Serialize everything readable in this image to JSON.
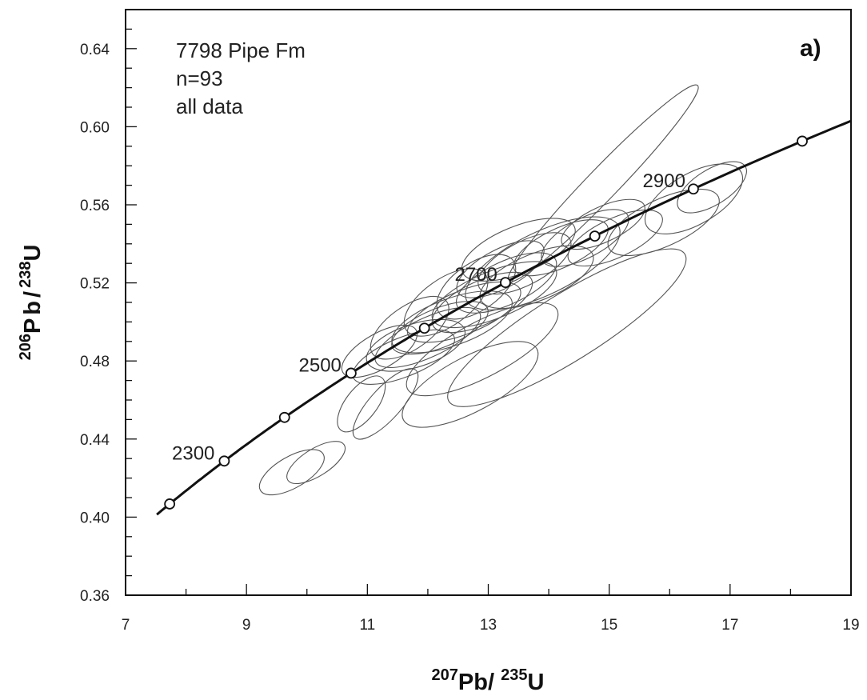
{
  "chart_data": {
    "type": "scatter",
    "title": "",
    "sample": [
      "7798 Pipe Fm",
      "n=93",
      "all data"
    ],
    "panel_label": "a)",
    "xlabel": {
      "mass_a": "207",
      "elem_a": "Pb/",
      "mass_b": "235",
      "elem_b": "U"
    },
    "ylabel": {
      "mass_a": "206",
      "elem_a": "Pb/",
      "mass_b": "238",
      "elem_b": "U"
    },
    "xlim": [
      7,
      19
    ],
    "ylim": [
      0.36,
      0.66
    ],
    "xticks": [
      {
        "value": 7,
        "label": "7"
      },
      {
        "value": 9,
        "label": "9"
      },
      {
        "value": 11,
        "label": "11"
      },
      {
        "value": 13,
        "label": "13"
      },
      {
        "value": 15,
        "label": "15"
      },
      {
        "value": 17,
        "label": "17"
      },
      {
        "value": 19,
        "label": "19"
      }
    ],
    "yticks": [
      {
        "value": 0.36,
        "label": "0.36"
      },
      {
        "value": 0.4,
        "label": "0.40"
      },
      {
        "value": 0.44,
        "label": "0.44"
      },
      {
        "value": 0.48,
        "label": "0.48"
      },
      {
        "value": 0.52,
        "label": "0.52"
      },
      {
        "value": 0.56,
        "label": "0.56"
      },
      {
        "value": 0.6,
        "label": "0.60"
      },
      {
        "value": 0.64,
        "label": "0.64"
      }
    ],
    "concordia": {
      "age_range_ma": [
        2175,
        3080
      ],
      "markers": [
        {
          "age": 2200,
          "label": ""
        },
        {
          "age": 2300,
          "label": "2300"
        },
        {
          "age": 2400,
          "label": ""
        },
        {
          "age": 2500,
          "label": "2500"
        },
        {
          "age": 2600,
          "label": ""
        },
        {
          "age": 2700,
          "label": "2700"
        },
        {
          "age": 2800,
          "label": ""
        },
        {
          "age": 2900,
          "label": "2900"
        },
        {
          "age": 3000,
          "label": ""
        }
      ]
    },
    "ellipses": [
      {
        "x": 9.75,
        "y": 0.423,
        "rx": 0.6,
        "ry": 0.008,
        "angle": 30
      },
      {
        "x": 10.15,
        "y": 0.428,
        "rx": 0.55,
        "ry": 0.007,
        "angle": 32
      },
      {
        "x": 10.9,
        "y": 0.458,
        "rx": 0.55,
        "ry": 0.008,
        "angle": 52
      },
      {
        "x": 11.3,
        "y": 0.458,
        "rx": 0.75,
        "ry": 0.008,
        "angle": 48
      },
      {
        "x": 12.7,
        "y": 0.468,
        "rx": 1.25,
        "ry": 0.014,
        "angle": 28
      },
      {
        "x": 11.6,
        "y": 0.482,
        "rx": 0.9,
        "ry": 0.01,
        "angle": 22
      },
      {
        "x": 11.2,
        "y": 0.485,
        "rx": 0.7,
        "ry": 0.009,
        "angle": 30
      },
      {
        "x": 11.8,
        "y": 0.488,
        "rx": 0.85,
        "ry": 0.011,
        "angle": 18
      },
      {
        "x": 12.0,
        "y": 0.492,
        "rx": 0.95,
        "ry": 0.01,
        "angle": 25
      },
      {
        "x": 11.7,
        "y": 0.497,
        "rx": 0.75,
        "ry": 0.011,
        "angle": 35
      },
      {
        "x": 12.2,
        "y": 0.497,
        "rx": 0.85,
        "ry": 0.01,
        "angle": 22
      },
      {
        "x": 12.4,
        "y": 0.5,
        "rx": 1.05,
        "ry": 0.012,
        "angle": 20
      },
      {
        "x": 12.9,
        "y": 0.486,
        "rx": 1.4,
        "ry": 0.014,
        "angle": 28
      },
      {
        "x": 12.6,
        "y": 0.505,
        "rx": 1.0,
        "ry": 0.011,
        "angle": 22
      },
      {
        "x": 12.3,
        "y": 0.51,
        "rx": 0.8,
        "ry": 0.012,
        "angle": 35
      },
      {
        "x": 12.9,
        "y": 0.51,
        "rx": 0.9,
        "ry": 0.011,
        "angle": 25
      },
      {
        "x": 13.1,
        "y": 0.514,
        "rx": 1.1,
        "ry": 0.012,
        "angle": 22
      },
      {
        "x": 12.8,
        "y": 0.518,
        "rx": 0.75,
        "ry": 0.012,
        "angle": 35
      },
      {
        "x": 13.3,
        "y": 0.52,
        "rx": 0.9,
        "ry": 0.011,
        "angle": 25
      },
      {
        "x": 13.2,
        "y": 0.527,
        "rx": 0.8,
        "ry": 0.01,
        "angle": 28
      },
      {
        "x": 13.8,
        "y": 0.523,
        "rx": 1.0,
        "ry": 0.012,
        "angle": 22
      },
      {
        "x": 13.6,
        "y": 0.53,
        "rx": 0.85,
        "ry": 0.011,
        "angle": 28
      },
      {
        "x": 13.9,
        "y": 0.53,
        "rx": 1.4,
        "ry": 0.016,
        "angle": 26
      },
      {
        "x": 13.5,
        "y": 0.537,
        "rx": 1.0,
        "ry": 0.012,
        "angle": 22
      },
      {
        "x": 14.2,
        "y": 0.538,
        "rx": 0.85,
        "ry": 0.01,
        "angle": 25
      },
      {
        "x": 14.6,
        "y": 0.543,
        "rx": 0.8,
        "ry": 0.01,
        "angle": 28
      },
      {
        "x": 15.1,
        "y": 0.543,
        "rx": 0.85,
        "ry": 0.01,
        "angle": 25
      },
      {
        "x": 14.9,
        "y": 0.55,
        "rx": 0.75,
        "ry": 0.009,
        "angle": 25
      },
      {
        "x": 15.9,
        "y": 0.551,
        "rx": 1.0,
        "ry": 0.012,
        "angle": 25
      },
      {
        "x": 14.3,
        "y": 0.497,
        "rx": 2.3,
        "ry": 0.017,
        "angle": 32
      },
      {
        "x": 14.9,
        "y": 0.571,
        "rx": 2.25,
        "ry": 0.008,
        "angle": 46
      },
      {
        "x": 16.4,
        "y": 0.563,
        "rx": 0.9,
        "ry": 0.013,
        "angle": 30
      },
      {
        "x": 16.7,
        "y": 0.569,
        "rx": 0.65,
        "ry": 0.009,
        "angle": 32
      }
    ]
  }
}
